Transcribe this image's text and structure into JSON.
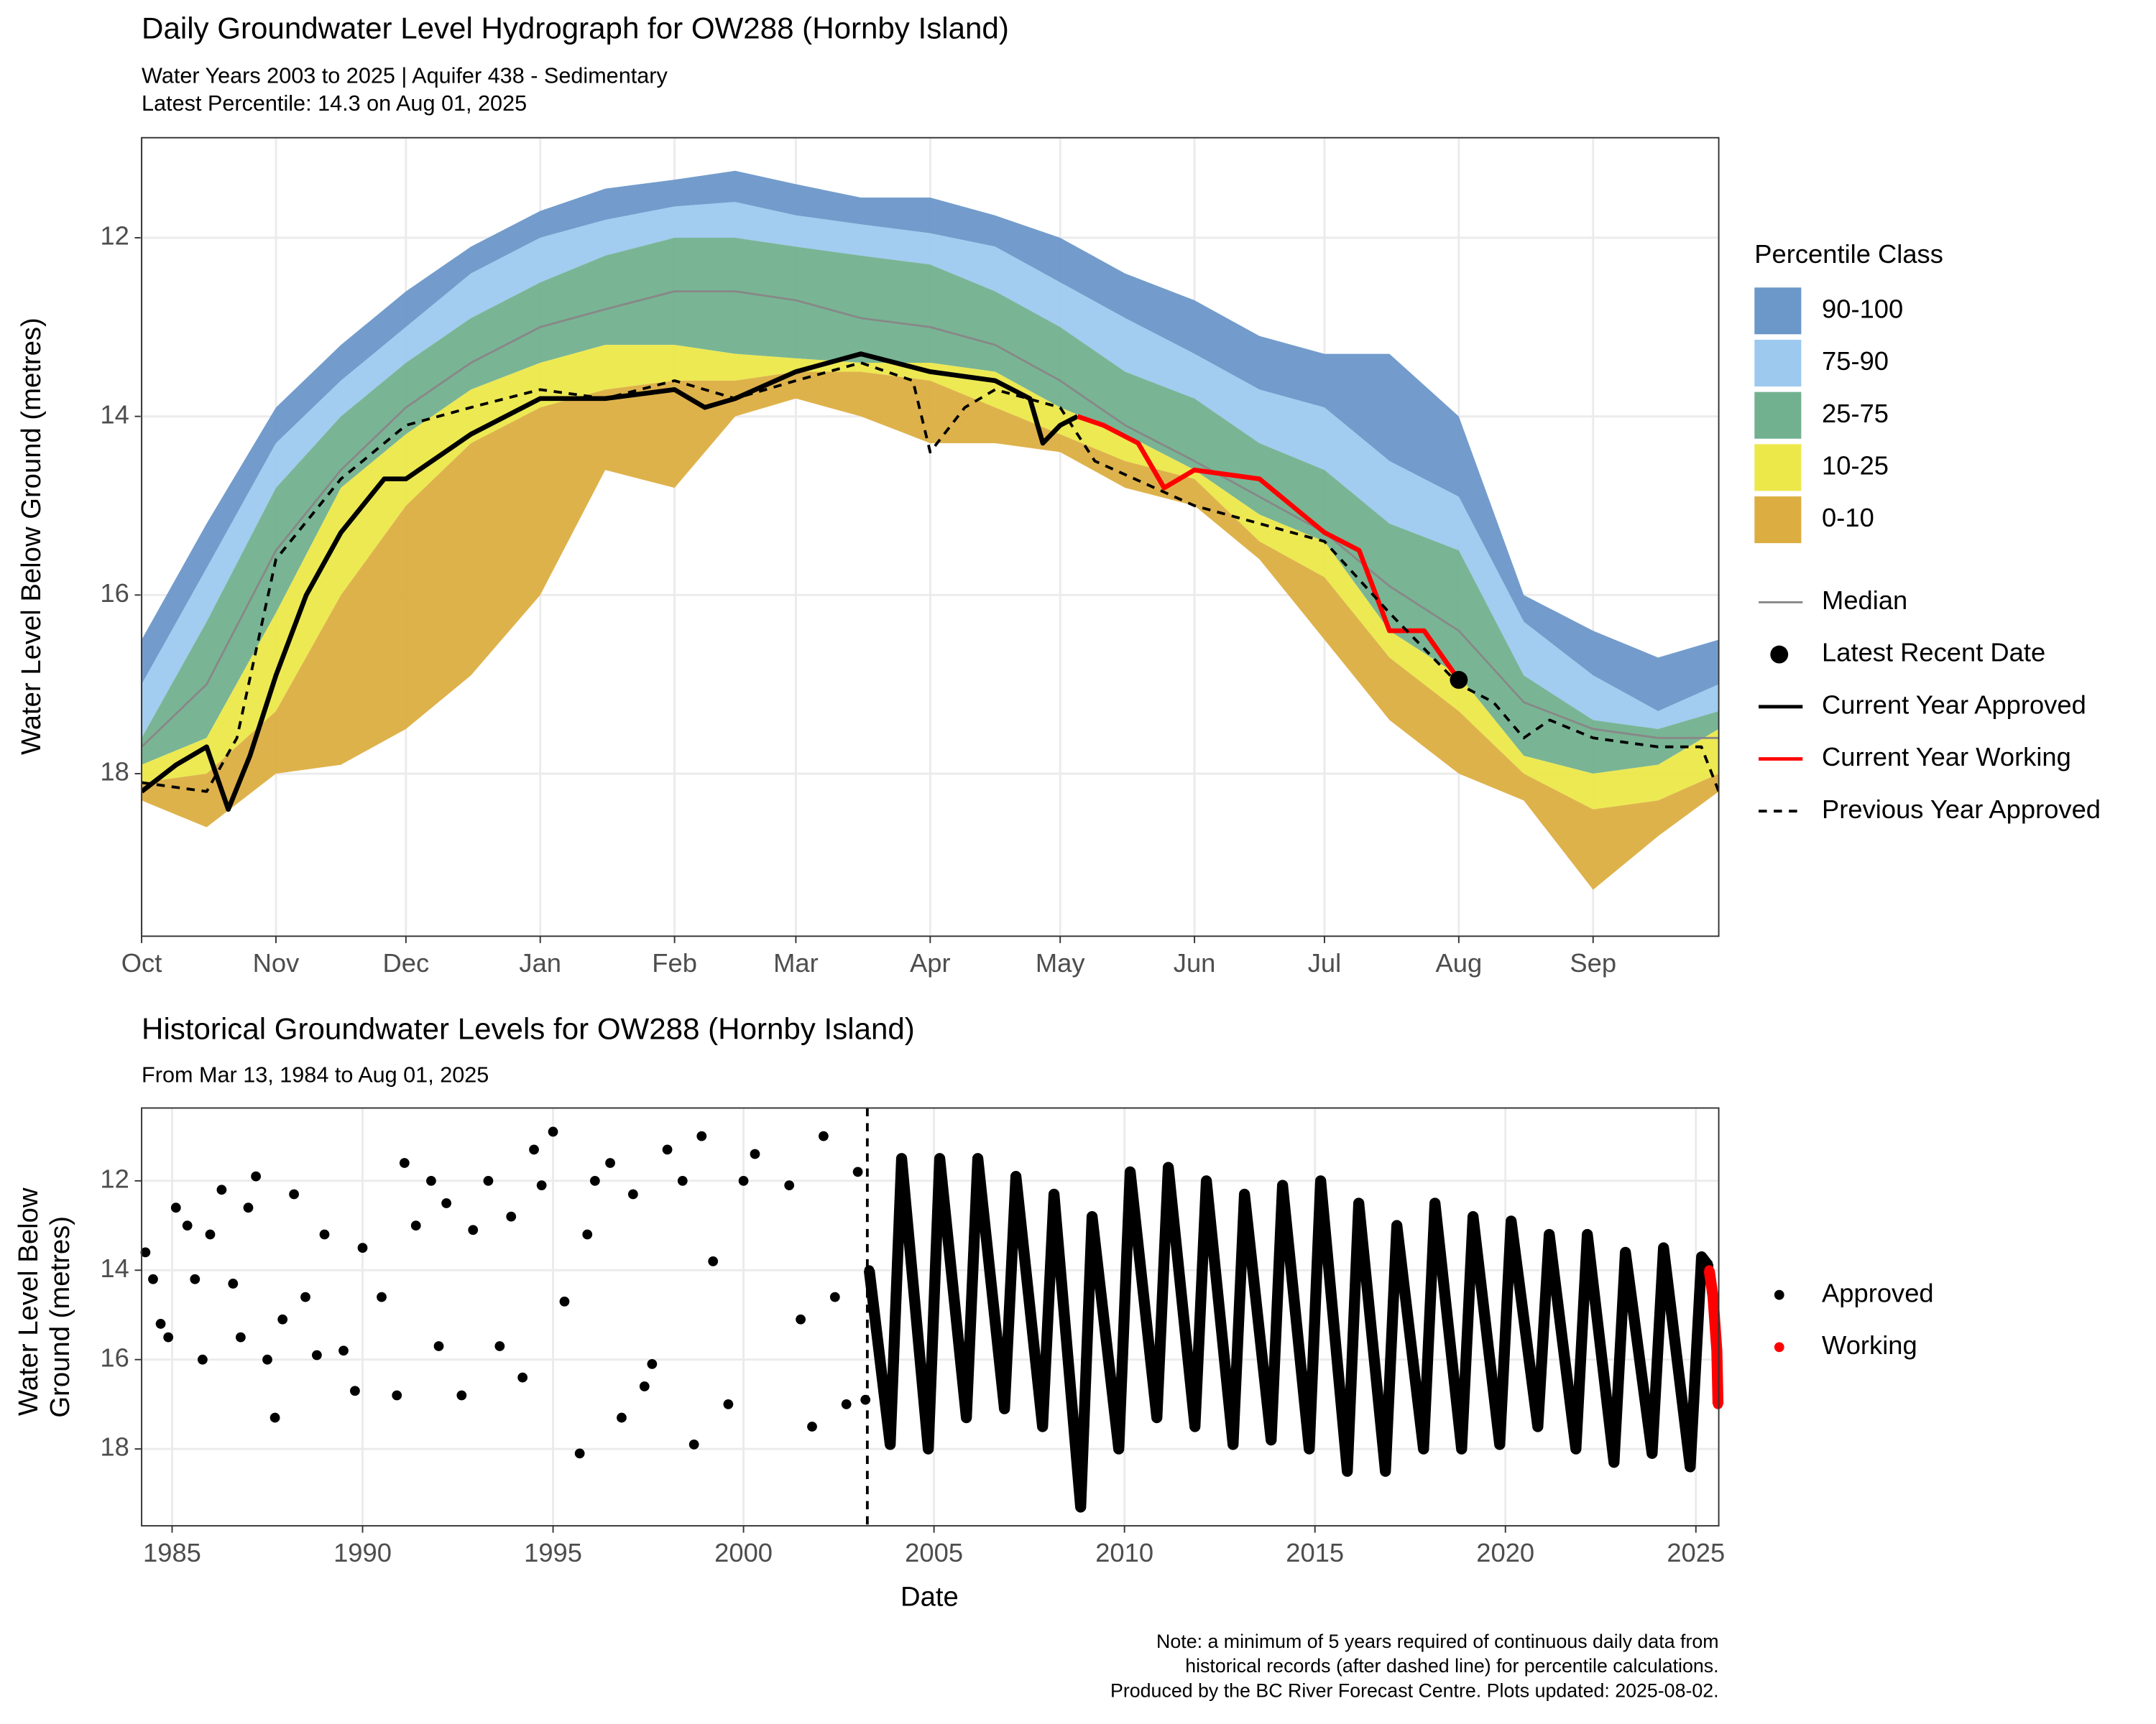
{
  "chart_data": [
    {
      "type": "area",
      "title": "Daily Groundwater Level Hydrograph for OW288 (Hornby Island)",
      "subtitle": [
        "Water Years 2003 to 2025 | Aquifer 438 - Sedimentary",
        "Latest Percentile: 14.3 on Aug 01, 2025"
      ],
      "ylabel": "Water Level Below Ground (metres)",
      "x": [
        0,
        15,
        31,
        46,
        61,
        76,
        92,
        107,
        123,
        137,
        151,
        166,
        182,
        197,
        212,
        227,
        243,
        258,
        273,
        288,
        304,
        319,
        335,
        350,
        364
      ],
      "xlim": [
        0,
        364
      ],
      "xticks": [
        {
          "value": 0,
          "label": "Oct"
        },
        {
          "value": 31,
          "label": "Nov"
        },
        {
          "value": 61,
          "label": "Dec"
        },
        {
          "value": 92,
          "label": "Jan"
        },
        {
          "value": 123,
          "label": "Feb"
        },
        {
          "value": 151,
          "label": "Mar"
        },
        {
          "value": 182,
          "label": "Apr"
        },
        {
          "value": 212,
          "label": "May"
        },
        {
          "value": 243,
          "label": "Jun"
        },
        {
          "value": 273,
          "label": "Jul"
        },
        {
          "value": 304,
          "label": "Aug"
        },
        {
          "value": 335,
          "label": "Sep"
        }
      ],
      "ylim": [
        10.88,
        19.82
      ],
      "y_reversed": true,
      "yticks": [
        12,
        14,
        16,
        18
      ],
      "grid": true,
      "legend_title": "Percentile Class",
      "bands": [
        {
          "name": "90-100",
          "color": "#6b97c9"
        },
        {
          "name": "75-90",
          "color": "#9dc9ef"
        },
        {
          "name": "25-75",
          "color": "#72b18f"
        },
        {
          "name": "10-25",
          "color": "#ece84a"
        },
        {
          "name": "0-10",
          "color": "#dcae41"
        }
      ],
      "bounds": [
        [
          16.5,
          15.2,
          13.9,
          13.2,
          12.6,
          12.1,
          11.7,
          11.45,
          11.35,
          11.25,
          11.4,
          11.55,
          11.55,
          11.75,
          12.0,
          12.4,
          12.7,
          13.1,
          13.3,
          13.3,
          14.0,
          16.0,
          16.4,
          16.7,
          16.5
        ],
        [
          17.0,
          15.7,
          14.3,
          13.6,
          13.0,
          12.4,
          12.0,
          11.8,
          11.65,
          11.6,
          11.75,
          11.85,
          11.95,
          12.1,
          12.5,
          12.9,
          13.3,
          13.7,
          13.9,
          14.5,
          14.9,
          16.3,
          16.9,
          17.3,
          17.0
        ],
        [
          17.6,
          16.3,
          14.8,
          14.0,
          13.4,
          12.9,
          12.5,
          12.2,
          12.0,
          12.0,
          12.1,
          12.2,
          12.3,
          12.6,
          13.0,
          13.5,
          13.8,
          14.3,
          14.6,
          15.2,
          15.5,
          16.9,
          17.4,
          17.5,
          17.3
        ],
        [
          17.9,
          17.6,
          16.2,
          14.8,
          14.2,
          13.7,
          13.4,
          13.2,
          13.2,
          13.3,
          13.35,
          13.4,
          13.4,
          13.5,
          13.9,
          14.2,
          14.6,
          15.1,
          15.4,
          16.4,
          16.9,
          17.8,
          18.0,
          17.9,
          17.5
        ],
        [
          18.1,
          18.0,
          17.3,
          16.0,
          15.0,
          14.3,
          13.9,
          13.7,
          13.6,
          13.6,
          13.5,
          13.5,
          13.6,
          13.9,
          14.2,
          14.5,
          14.7,
          15.4,
          15.8,
          16.7,
          17.3,
          18.0,
          18.4,
          18.3,
          18.0
        ],
        [
          18.3,
          18.6,
          18.0,
          17.9,
          17.5,
          16.9,
          16.0,
          14.6,
          14.8,
          14.0,
          13.8,
          14.0,
          14.3,
          14.3,
          14.4,
          14.8,
          15.0,
          15.6,
          16.5,
          17.4,
          18.0,
          18.3,
          19.3,
          18.7,
          18.2
        ]
      ],
      "lines": [
        {
          "name": "Median",
          "color": "#888888",
          "dash": "solid",
          "width": 1.5,
          "x": [
            0,
            15,
            31,
            46,
            61,
            76,
            92,
            107,
            123,
            137,
            151,
            166,
            182,
            197,
            212,
            227,
            243,
            258,
            273,
            288,
            304,
            319,
            335,
            350,
            364
          ],
          "values": [
            17.7,
            17.0,
            15.5,
            14.6,
            13.9,
            13.4,
            13.0,
            12.8,
            12.6,
            12.6,
            12.7,
            12.9,
            13.0,
            13.2,
            13.6,
            14.1,
            14.5,
            14.9,
            15.3,
            15.9,
            16.4,
            17.2,
            17.5,
            17.6,
            17.6
          ]
        },
        {
          "name": "Current Year Approved",
          "color": "#000000",
          "dash": "solid",
          "width": 3.5,
          "x": [
            0,
            8,
            15,
            20,
            25,
            31,
            38,
            46,
            56,
            61,
            76,
            92,
            107,
            123,
            130,
            137,
            151,
            166,
            182,
            197,
            205,
            208,
            212,
            216
          ],
          "values": [
            18.2,
            17.9,
            17.7,
            18.4,
            17.8,
            16.9,
            16.0,
            15.3,
            14.7,
            14.7,
            14.2,
            13.8,
            13.8,
            13.7,
            13.9,
            13.8,
            13.5,
            13.3,
            13.5,
            13.6,
            13.8,
            14.3,
            14.1,
            14.0
          ]
        },
        {
          "name": "Current Year Working",
          "color": "#ff0000",
          "dash": "solid",
          "width": 3.5,
          "x": [
            216,
            222,
            230,
            236,
            243,
            258,
            273,
            281,
            288,
            296,
            304
          ],
          "values": [
            14.0,
            14.1,
            14.3,
            14.8,
            14.6,
            14.7,
            15.3,
            15.5,
            16.4,
            16.4,
            16.95
          ]
        },
        {
          "name": "Previous Year Approved",
          "color": "#000000",
          "dash": "dashed",
          "width": 2,
          "x": [
            0,
            15,
            22,
            31,
            46,
            61,
            76,
            92,
            107,
            123,
            137,
            151,
            166,
            178,
            182,
            190,
            197,
            212,
            220,
            243,
            258,
            273,
            288,
            304,
            312,
            319,
            325,
            335,
            350,
            360,
            364
          ],
          "values": [
            18.1,
            18.2,
            17.6,
            15.6,
            14.7,
            14.1,
            13.9,
            13.7,
            13.8,
            13.6,
            13.8,
            13.6,
            13.4,
            13.6,
            14.4,
            13.9,
            13.7,
            13.9,
            14.5,
            15.0,
            15.2,
            15.4,
            16.2,
            17.0,
            17.2,
            17.6,
            17.4,
            17.6,
            17.7,
            17.7,
            18.2
          ]
        }
      ],
      "point": {
        "name": "Latest Recent Date",
        "color": "#000000",
        "x": 304,
        "value": 16.95
      }
    },
    {
      "type": "scatter",
      "title": "Historical Groundwater Levels for OW288 (Hornby Island)",
      "subtitle": "From Mar 13, 1984 to Aug 01, 2025",
      "ylabel": [
        "Water Level Below",
        "Ground (metres)"
      ],
      "xlabel": "Date",
      "xlim": [
        1984.2,
        2025.6
      ],
      "xticks": [
        1985,
        1990,
        1995,
        2000,
        2005,
        2010,
        2015,
        2020,
        2025
      ],
      "ylim": [
        10.37,
        19.72
      ],
      "y_reversed": true,
      "yticks": [
        12,
        14,
        16,
        18
      ],
      "grid": true,
      "vline": 2003.25,
      "series": [
        {
          "name": "Approved",
          "color": "#000000",
          "x": [
            1984.3,
            1984.5,
            1984.7,
            1984.9,
            1985.1,
            1985.4,
            1985.6,
            1985.8,
            1986.0,
            1986.3,
            1986.6,
            1986.8,
            1987.0,
            1987.2,
            1987.5,
            1987.7,
            1987.9,
            1988.2,
            1988.5,
            1988.8,
            1989.0,
            1989.5,
            1989.8,
            1990.0,
            1990.5,
            1990.9,
            1991.1,
            1991.4,
            1991.8,
            1992.0,
            1992.2,
            1992.6,
            1992.9,
            1993.3,
            1993.6,
            1993.9,
            1994.2,
            1994.5,
            1994.7,
            1995.0,
            1995.3,
            1995.7,
            1995.9,
            1996.1,
            1996.5,
            1996.8,
            1997.1,
            1997.4,
            1997.6,
            1998.0,
            1998.4,
            1998.7,
            1998.9,
            1999.2,
            1999.6,
            2000.0,
            2000.3,
            2001.2,
            2001.5,
            2001.8,
            2002.1,
            2002.4,
            2002.7,
            2003.0,
            2003.2,
            2003.3,
            2003.85,
            2004.15,
            2004.85,
            2005.15,
            2005.85,
            2006.15,
            2006.85,
            2007.15,
            2007.85,
            2008.15,
            2008.85,
            2009.15,
            2009.85,
            2010.15,
            2010.85,
            2011.15,
            2011.85,
            2012.15,
            2012.85,
            2013.15,
            2013.85,
            2014.15,
            2014.85,
            2015.15,
            2015.85,
            2016.15,
            2016.85,
            2017.15,
            2017.85,
            2018.15,
            2018.85,
            2019.15,
            2019.85,
            2020.15,
            2020.85,
            2021.15,
            2021.85,
            2022.15,
            2022.85,
            2023.15,
            2023.85,
            2024.15,
            2024.85,
            2025.15,
            2025.33
          ],
          "values": [
            13.6,
            14.2,
            15.2,
            15.5,
            12.6,
            13.0,
            14.2,
            16.0,
            13.2,
            12.2,
            14.3,
            15.5,
            12.6,
            11.9,
            16.0,
            17.3,
            15.1,
            12.3,
            14.6,
            15.9,
            13.2,
            15.8,
            16.7,
            13.5,
            14.6,
            16.8,
            11.6,
            13.0,
            12.0,
            15.7,
            12.5,
            16.8,
            13.1,
            12.0,
            15.7,
            12.8,
            16.4,
            11.3,
            12.1,
            10.9,
            14.7,
            18.1,
            13.2,
            12.0,
            11.6,
            17.3,
            12.3,
            16.6,
            16.1,
            11.3,
            12.0,
            17.9,
            11.0,
            13.8,
            17.0,
            12.0,
            11.4,
            12.1,
            15.1,
            17.5,
            11.0,
            14.6,
            17.0,
            11.8,
            16.9,
            14.0,
            17.9,
            11.5,
            18.0,
            11.5,
            17.3,
            11.5,
            17.1,
            11.9,
            17.5,
            12.3,
            19.3,
            12.8,
            18.0,
            11.8,
            17.3,
            11.7,
            17.5,
            12.0,
            17.9,
            12.3,
            17.8,
            12.1,
            18.0,
            12.0,
            18.5,
            12.5,
            18.5,
            13.0,
            18.0,
            12.5,
            18.0,
            12.8,
            17.9,
            12.9,
            17.5,
            13.2,
            18.0,
            13.2,
            18.3,
            13.6,
            18.1,
            13.5,
            18.4,
            13.7,
            13.9
          ]
        },
        {
          "name": "Working",
          "color": "#ff0000",
          "x": [
            2025.35,
            2025.45,
            2025.55,
            2025.58
          ],
          "values": [
            14.0,
            14.6,
            15.8,
            17.0
          ]
        }
      ]
    }
  ],
  "note": [
    "Note: a minimum of 5 years required of continuous daily data from",
    "historical records (after dashed line) for percentile calculations.",
    "Produced by the BC River Forecast Centre. Plots updated: 2025-08-02."
  ]
}
